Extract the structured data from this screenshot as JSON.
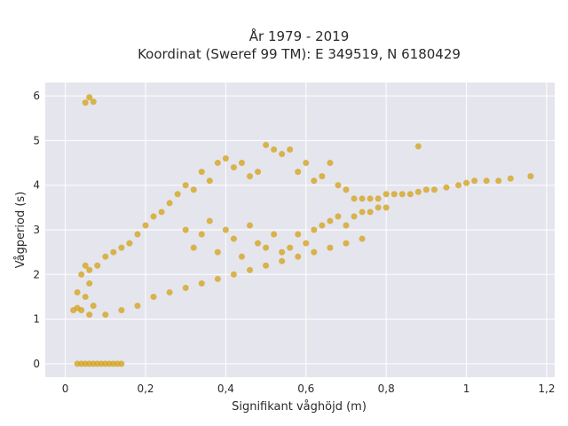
{
  "chart_data": {
    "type": "scatter",
    "title_line1": "År 1979 - 2019",
    "title_line2": "Koordinat (Sweref 99 TM): E 349519, N 6180429",
    "xlabel": "Signifikant våghöjd (m)",
    "ylabel": "Vågperiod (s)",
    "xlim": [
      -0.05,
      1.22
    ],
    "ylim": [
      -0.3,
      6.3
    ],
    "x_ticks": [
      0,
      0.2,
      0.4,
      0.6,
      0.8,
      1,
      1.2
    ],
    "x_tick_labels": [
      "0",
      "0,2",
      "0,4",
      "0,6",
      "0,8",
      "1",
      "1,2"
    ],
    "y_ticks": [
      0,
      1,
      2,
      3,
      4,
      5,
      6
    ],
    "y_tick_labels": [
      "0",
      "1",
      "2",
      "3",
      "4",
      "5",
      "6"
    ],
    "grid": true,
    "marker_color": "#D4A520",
    "background": "#E5E5EE",
    "series": [
      {
        "x": [
          0.04,
          0.05,
          0.06,
          0.05,
          0.07,
          0.03,
          0.02,
          0.03,
          0.04,
          0.06,
          0.08,
          0.1,
          0.12,
          0.14,
          0.16,
          0.18,
          0.2,
          0.22,
          0.24,
          0.26,
          0.28,
          0.3,
          0.32,
          0.34,
          0.36,
          0.38,
          0.4,
          0.42,
          0.44,
          0.46,
          0.48,
          0.5,
          0.52,
          0.54,
          0.56,
          0.58,
          0.6,
          0.62,
          0.64,
          0.66,
          0.68,
          0.7,
          0.72,
          0.74,
          0.76,
          0.78,
          0.8,
          0.82,
          0.84,
          0.86,
          0.88,
          0.9,
          0.92,
          0.95,
          0.98,
          1.0,
          1.02,
          1.05,
          1.08,
          1.11,
          1.16,
          0.06,
          0.1,
          0.14,
          0.18,
          0.22,
          0.26,
          0.3,
          0.34,
          0.38,
          0.42,
          0.46,
          0.5,
          0.54,
          0.58,
          0.62,
          0.66,
          0.7,
          0.74,
          0.3,
          0.32,
          0.34,
          0.36,
          0.38,
          0.4,
          0.42,
          0.44,
          0.46,
          0.48,
          0.5,
          0.52,
          0.54,
          0.56,
          0.58,
          0.6,
          0.62,
          0.64,
          0.66,
          0.68,
          0.7,
          0.72,
          0.74,
          0.76,
          0.78,
          0.8,
          0.88,
          0.03,
          0.04,
          0.05,
          0.06,
          0.07,
          0.08,
          0.09,
          0.1,
          0.11,
          0.12,
          0.13,
          0.14,
          0.05,
          0.06,
          0.07
        ],
        "y": [
          1.2,
          1.5,
          1.8,
          2.2,
          1.3,
          1.25,
          1.2,
          1.6,
          2.0,
          2.1,
          2.2,
          2.4,
          2.5,
          2.6,
          2.7,
          2.9,
          3.1,
          3.3,
          3.4,
          3.6,
          3.8,
          4.0,
          3.9,
          4.3,
          4.1,
          4.5,
          4.6,
          4.4,
          4.5,
          4.2,
          4.3,
          4.9,
          4.8,
          4.7,
          4.8,
          4.3,
          4.5,
          4.1,
          4.2,
          4.5,
          4.0,
          3.9,
          3.7,
          3.7,
          3.7,
          3.7,
          3.8,
          3.8,
          3.8,
          3.8,
          3.85,
          3.9,
          3.9,
          3.95,
          4.0,
          4.05,
          4.1,
          4.1,
          4.1,
          4.15,
          4.2,
          1.1,
          1.1,
          1.2,
          1.3,
          1.5,
          1.6,
          1.7,
          1.8,
          1.9,
          2.0,
          2.1,
          2.2,
          2.3,
          2.4,
          2.5,
          2.6,
          2.7,
          2.8,
          3.0,
          2.6,
          2.9,
          3.2,
          2.5,
          3.0,
          2.8,
          2.4,
          3.1,
          2.7,
          2.6,
          2.9,
          2.5,
          2.6,
          2.9,
          2.7,
          3.0,
          3.1,
          3.2,
          3.3,
          3.1,
          3.3,
          3.4,
          3.4,
          3.5,
          3.5,
          4.87,
          0,
          0,
          0,
          0,
          0,
          0,
          0,
          0,
          0,
          0,
          0,
          0,
          5.85,
          5.97,
          5.87
        ]
      }
    ]
  }
}
